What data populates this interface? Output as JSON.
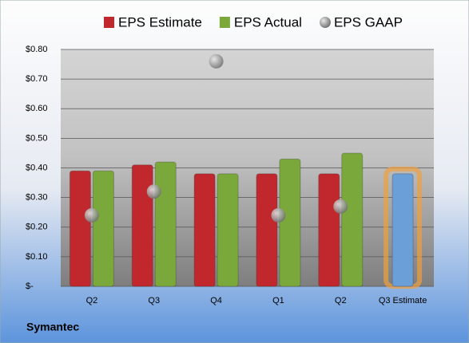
{
  "chart_data": {
    "type": "bar",
    "categories": [
      "Q2",
      "Q3",
      "Q4",
      "Q1",
      "Q2",
      "Q3 Estimate"
    ],
    "series": [
      {
        "name": "EPS Estimate",
        "color": "#c0282d",
        "values": [
          0.39,
          0.41,
          0.38,
          0.38,
          0.38,
          null
        ]
      },
      {
        "name": "EPS Actual",
        "color": "#7aa83a",
        "values": [
          0.39,
          0.42,
          0.38,
          0.43,
          0.45,
          null
        ]
      },
      {
        "name": "EPS GAAP",
        "color": "#9a9a9a",
        "values": [
          0.24,
          0.32,
          0.76,
          0.24,
          0.27,
          null
        ],
        "style": "bubble"
      },
      {
        "color": "#6a9fd8",
        "values": [
          null,
          null,
          null,
          null,
          null,
          0.38
        ]
      }
    ],
    "ylim": [
      0,
      0.8
    ],
    "yticks": [
      {
        "value": 0,
        "label": "$-"
      },
      {
        "value": 0.1,
        "label": "$0.10"
      },
      {
        "value": 0.2,
        "label": "$0.20"
      },
      {
        "value": 0.3,
        "label": "$0.30"
      },
      {
        "value": 0.4,
        "label": "$0.40"
      },
      {
        "value": 0.5,
        "label": "$0.50"
      },
      {
        "value": 0.6,
        "label": "$0.60"
      },
      {
        "value": 0.7,
        "label": "$0.70"
      },
      {
        "value": 0.8,
        "label": "$0.80"
      }
    ],
    "grid": true,
    "footer": "Symantec"
  }
}
